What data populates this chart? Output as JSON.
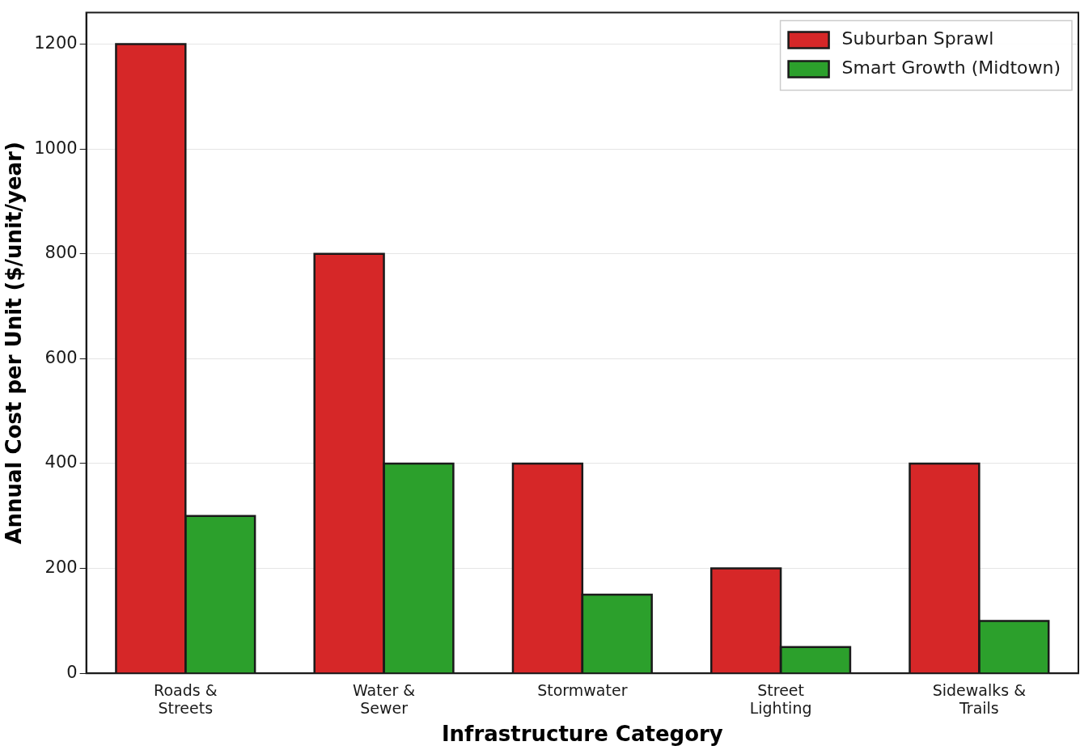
{
  "chart_data": {
    "type": "bar",
    "xlabel": "Infrastructure Category",
    "ylabel": "Annual Cost per Unit ($/unit/year)",
    "categories": [
      "Roads &\nStreets",
      "Water &\nSewer",
      "Stormwater",
      "Street\nLighting",
      "Sidewalks &\nTrails"
    ],
    "series": [
      {
        "name": "Suburban Sprawl",
        "color": "#d62728",
        "values": [
          1200,
          800,
          400,
          200,
          400
        ]
      },
      {
        "name": "Smart Growth (Midtown)",
        "color": "#2ca02c",
        "values": [
          300,
          400,
          150,
          50,
          100
        ]
      }
    ],
    "ylim": [
      0,
      1260
    ],
    "yticks": [
      0,
      200,
      400,
      600,
      800,
      1000,
      1200
    ],
    "grid": "y",
    "legend": "top right"
  }
}
